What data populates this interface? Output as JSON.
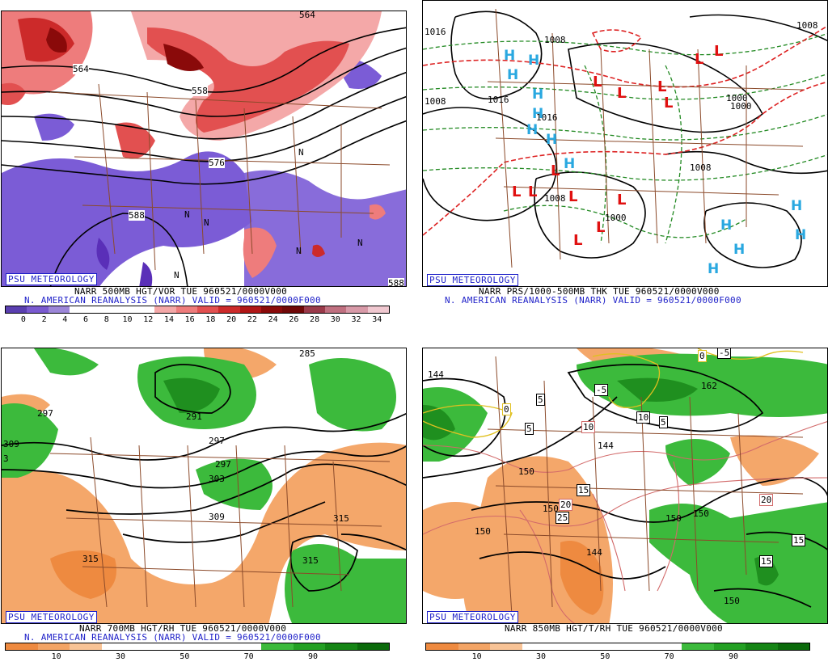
{
  "panels": [
    {
      "tag": "PSU METEOROLOGY",
      "line1": "NARR 500MB HGT/VOR TUE 960521/0000V000",
      "line2": "N. AMERICAN REANALYSIS (NARR) VALID = 960521/0000F000",
      "bar_colors": [
        "#5a3fb0",
        "#7a5ad0",
        "#9c86d8",
        "#ffffff",
        "#ffffff",
        "#ffffff",
        "#ffffff",
        "#f4a8a8",
        "#ee7c7c",
        "#e25050",
        "#cc2a2a",
        "#b01616",
        "#8a0a0a",
        "#700808",
        "#9a3a4a",
        "#c07080",
        "#d89aa8",
        "#f0c8d0"
      ],
      "bar_ticks": [
        "0",
        "2",
        "4",
        "6",
        "8",
        "10",
        "12",
        "14",
        "16",
        "18",
        "20",
        "22",
        "24",
        "26",
        "28",
        "30",
        "32",
        "34"
      ],
      "labels": [
        "564",
        "558",
        "576",
        "588",
        "588",
        "564",
        "N",
        "N",
        "N",
        "N",
        "N",
        "N"
      ]
    },
    {
      "tag": "PSU METEOROLOGY",
      "line1": "NARR PRS/1000-500MB THK TUE 960521/0000V000",
      "line2": "N. AMERICAN REANALYSIS (NARR) VALID = 960521/0000F000",
      "labels": [
        "1008",
        "1016",
        "1016",
        "1008",
        "1000",
        "1000",
        "1008",
        "1008",
        "1000",
        "1008",
        "1016"
      ],
      "highs": [
        "H",
        "H",
        "H",
        "H",
        "H",
        "H",
        "H",
        "H",
        "H",
        "H",
        "H",
        "H",
        "H"
      ],
      "lows": [
        "L",
        "L",
        "L",
        "L",
        "L",
        "L",
        "L",
        "L",
        "L",
        "L",
        "L",
        "L",
        "L"
      ]
    },
    {
      "tag": "PSU METEOROLOGY",
      "line1": "NARR 700MB HGT/RH TUE 960521/0000V000",
      "line2": "N. AMERICAN REANALYSIS (NARR) VALID = 960521/0000F000",
      "bar_colors": [
        "#ee8a40",
        "#f3a465",
        "#f8c396",
        "#ffffff",
        "#ffffff",
        "#ffffff",
        "#ffffff",
        "#ffffff",
        "#3cba3c",
        "#23a023",
        "#158515",
        "#0b6a0b"
      ],
      "bar_ticks": [
        "10",
        "30",
        "50",
        "70",
        "90"
      ],
      "labels": [
        "297",
        "297",
        "291",
        "297",
        "303",
        "309",
        "315",
        "315",
        "315",
        "285",
        "309",
        "3"
      ]
    },
    {
      "tag": "PSU METEOROLOGY",
      "line1": "NARR 850MB HGT/T/RH TUE 960521/0000V000",
      "bar_colors": [
        "#ee8a40",
        "#f3a465",
        "#f8c396",
        "#ffffff",
        "#ffffff",
        "#ffffff",
        "#ffffff",
        "#ffffff",
        "#3cba3c",
        "#23a023",
        "#158515",
        "#0b6a0b"
      ],
      "bar_ticks": [
        "10",
        "30",
        "50",
        "70",
        "90"
      ],
      "labels": [
        "144",
        "150",
        "150",
        "144",
        "150",
        "150",
        "144",
        "162",
        "150"
      ],
      "boxed": [
        "0",
        "-5",
        "5",
        "5",
        "10",
        "15",
        "20",
        "25",
        "15",
        "15",
        "20",
        "5",
        "0",
        "-5",
        "10",
        "150"
      ]
    }
  ]
}
